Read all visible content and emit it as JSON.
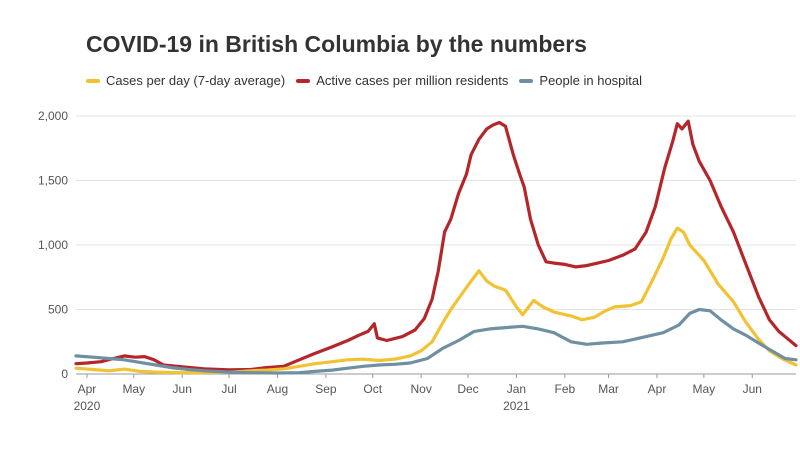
{
  "chart_data": {
    "type": "line",
    "title": "COVID-19 in British Columbia by the numbers",
    "xlabel": "",
    "ylabel": "",
    "legend_position": "top",
    "grid": true,
    "x_ticks": [
      {
        "label": "Apr",
        "year": "2020",
        "date": "2020-04-01"
      },
      {
        "label": "May",
        "date": "2020-05-01"
      },
      {
        "label": "Jun",
        "date": "2020-06-01"
      },
      {
        "label": "Jul",
        "date": "2020-07-01"
      },
      {
        "label": "Aug",
        "date": "2020-08-01"
      },
      {
        "label": "Sep",
        "date": "2020-09-01"
      },
      {
        "label": "Oct",
        "date": "2020-10-01"
      },
      {
        "label": "Nov",
        "date": "2020-11-01"
      },
      {
        "label": "Dec",
        "date": "2020-12-01"
      },
      {
        "label": "Jan",
        "year": "2021",
        "date": "2021-01-01"
      },
      {
        "label": "Feb",
        "date": "2021-02-01"
      },
      {
        "label": "Mar",
        "date": "2021-03-01"
      },
      {
        "label": "Apr",
        "date": "2021-04-01"
      },
      {
        "label": "May",
        "date": "2021-05-01"
      },
      {
        "label": "Jun",
        "date": "2021-06-01"
      }
    ],
    "y_ticks": [
      {
        "value": 0,
        "label": "0"
      },
      {
        "value": 500,
        "label": "500"
      },
      {
        "value": 1000,
        "label": "1,000"
      },
      {
        "value": 1500,
        "label": "1,500"
      },
      {
        "value": 2000,
        "label": "2,000"
      }
    ],
    "xlim": [
      "2020-03-25",
      "2021-06-29"
    ],
    "ylim": [
      0,
      2000
    ],
    "series": [
      {
        "name": "Active cases per million residents",
        "color": "#b5262b",
        "points": [
          [
            "2020-03-25",
            80
          ],
          [
            "2020-04-01",
            85
          ],
          [
            "2020-04-10",
            95
          ],
          [
            "2020-04-18",
            120
          ],
          [
            "2020-04-25",
            140
          ],
          [
            "2020-05-02",
            130
          ],
          [
            "2020-05-08",
            135
          ],
          [
            "2020-05-14",
            110
          ],
          [
            "2020-05-20",
            70
          ],
          [
            "2020-06-01",
            55
          ],
          [
            "2020-06-15",
            40
          ],
          [
            "2020-07-01",
            32
          ],
          [
            "2020-07-15",
            35
          ],
          [
            "2020-07-25",
            50
          ],
          [
            "2020-08-05",
            60
          ],
          [
            "2020-08-15",
            110
          ],
          [
            "2020-08-25",
            160
          ],
          [
            "2020-09-05",
            210
          ],
          [
            "2020-09-15",
            260
          ],
          [
            "2020-09-22",
            300
          ],
          [
            "2020-09-28",
            330
          ],
          [
            "2020-10-02",
            390
          ],
          [
            "2020-10-04",
            280
          ],
          [
            "2020-10-10",
            260
          ],
          [
            "2020-10-20",
            290
          ],
          [
            "2020-10-28",
            340
          ],
          [
            "2020-11-03",
            430
          ],
          [
            "2020-11-08",
            580
          ],
          [
            "2020-11-12",
            800
          ],
          [
            "2020-11-16",
            1100
          ],
          [
            "2020-11-20",
            1200
          ],
          [
            "2020-11-25",
            1400
          ],
          [
            "2020-11-30",
            1550
          ],
          [
            "2020-12-03",
            1700
          ],
          [
            "2020-12-08",
            1820
          ],
          [
            "2020-12-13",
            1900
          ],
          [
            "2020-12-17",
            1930
          ],
          [
            "2020-12-21",
            1950
          ],
          [
            "2020-12-25",
            1920
          ],
          [
            "2020-12-30",
            1700
          ],
          [
            "2021-01-03",
            1550
          ],
          [
            "2021-01-06",
            1450
          ],
          [
            "2021-01-10",
            1200
          ],
          [
            "2021-01-15",
            1000
          ],
          [
            "2021-01-20",
            870
          ],
          [
            "2021-01-25",
            860
          ],
          [
            "2021-02-01",
            850
          ],
          [
            "2021-02-08",
            830
          ],
          [
            "2021-02-15",
            840
          ],
          [
            "2021-02-22",
            860
          ],
          [
            "2021-03-01",
            880
          ],
          [
            "2021-03-10",
            920
          ],
          [
            "2021-03-18",
            970
          ],
          [
            "2021-03-25",
            1100
          ],
          [
            "2021-03-31",
            1300
          ],
          [
            "2021-04-06",
            1600
          ],
          [
            "2021-04-11",
            1800
          ],
          [
            "2021-04-14",
            1940
          ],
          [
            "2021-04-17",
            1900
          ],
          [
            "2021-04-21",
            1960
          ],
          [
            "2021-04-24",
            1780
          ],
          [
            "2021-04-28",
            1650
          ],
          [
            "2021-05-05",
            1500
          ],
          [
            "2021-05-12",
            1300
          ],
          [
            "2021-05-20",
            1100
          ],
          [
            "2021-05-28",
            850
          ],
          [
            "2021-06-05",
            600
          ],
          [
            "2021-06-12",
            420
          ],
          [
            "2021-06-18",
            330
          ],
          [
            "2021-06-24",
            270
          ],
          [
            "2021-06-29",
            220
          ]
        ]
      },
      {
        "name": "Cases per day (7-day average)",
        "color": "#f1c232",
        "points": [
          [
            "2020-03-25",
            45
          ],
          [
            "2020-04-05",
            35
          ],
          [
            "2020-04-15",
            25
          ],
          [
            "2020-04-25",
            38
          ],
          [
            "2020-05-05",
            20
          ],
          [
            "2020-05-15",
            15
          ],
          [
            "2020-06-01",
            10
          ],
          [
            "2020-06-15",
            12
          ],
          [
            "2020-07-01",
            14
          ],
          [
            "2020-07-15",
            25
          ],
          [
            "2020-07-25",
            30
          ],
          [
            "2020-08-05",
            40
          ],
          [
            "2020-08-15",
            60
          ],
          [
            "2020-08-25",
            80
          ],
          [
            "2020-09-05",
            95
          ],
          [
            "2020-09-15",
            110
          ],
          [
            "2020-09-25",
            115
          ],
          [
            "2020-10-05",
            105
          ],
          [
            "2020-10-15",
            115
          ],
          [
            "2020-10-25",
            140
          ],
          [
            "2020-11-01",
            180
          ],
          [
            "2020-11-08",
            250
          ],
          [
            "2020-11-15",
            400
          ],
          [
            "2020-11-20",
            500
          ],
          [
            "2020-11-27",
            620
          ],
          [
            "2020-12-03",
            720
          ],
          [
            "2020-12-08",
            800
          ],
          [
            "2020-12-13",
            720
          ],
          [
            "2020-12-18",
            680
          ],
          [
            "2020-12-25",
            650
          ],
          [
            "2021-01-01",
            520
          ],
          [
            "2021-01-05",
            460
          ],
          [
            "2021-01-12",
            570
          ],
          [
            "2021-01-18",
            520
          ],
          [
            "2021-01-25",
            480
          ],
          [
            "2021-02-05",
            450
          ],
          [
            "2021-02-12",
            420
          ],
          [
            "2021-02-20",
            440
          ],
          [
            "2021-02-27",
            490
          ],
          [
            "2021-03-05",
            520
          ],
          [
            "2021-03-15",
            530
          ],
          [
            "2021-03-22",
            560
          ],
          [
            "2021-03-30",
            750
          ],
          [
            "2021-04-05",
            900
          ],
          [
            "2021-04-10",
            1050
          ],
          [
            "2021-04-14",
            1130
          ],
          [
            "2021-04-18",
            1100
          ],
          [
            "2021-04-22",
            1000
          ],
          [
            "2021-05-01",
            880
          ],
          [
            "2021-05-10",
            700
          ],
          [
            "2021-05-20",
            560
          ],
          [
            "2021-05-28",
            400
          ],
          [
            "2021-06-05",
            270
          ],
          [
            "2021-06-12",
            180
          ],
          [
            "2021-06-20",
            120
          ],
          [
            "2021-06-29",
            70
          ]
        ]
      },
      {
        "name": "People in hospital",
        "color": "#6f8fa3",
        "points": [
          [
            "2020-03-25",
            140
          ],
          [
            "2020-04-05",
            130
          ],
          [
            "2020-04-15",
            120
          ],
          [
            "2020-04-25",
            110
          ],
          [
            "2020-05-05",
            90
          ],
          [
            "2020-05-15",
            70
          ],
          [
            "2020-05-25",
            50
          ],
          [
            "2020-06-05",
            35
          ],
          [
            "2020-06-15",
            25
          ],
          [
            "2020-07-01",
            15
          ],
          [
            "2020-07-15",
            10
          ],
          [
            "2020-08-01",
            8
          ],
          [
            "2020-08-15",
            10
          ],
          [
            "2020-08-25",
            20
          ],
          [
            "2020-09-05",
            30
          ],
          [
            "2020-09-15",
            45
          ],
          [
            "2020-09-25",
            60
          ],
          [
            "2020-10-05",
            70
          ],
          [
            "2020-10-15",
            75
          ],
          [
            "2020-10-25",
            85
          ],
          [
            "2020-11-05",
            120
          ],
          [
            "2020-11-15",
            200
          ],
          [
            "2020-11-25",
            260
          ],
          [
            "2020-12-05",
            330
          ],
          [
            "2020-12-15",
            350
          ],
          [
            "2020-12-25",
            360
          ],
          [
            "2021-01-05",
            370
          ],
          [
            "2021-01-15",
            350
          ],
          [
            "2021-01-25",
            320
          ],
          [
            "2021-02-05",
            250
          ],
          [
            "2021-02-15",
            230
          ],
          [
            "2021-02-25",
            240
          ],
          [
            "2021-03-10",
            250
          ],
          [
            "2021-03-25",
            290
          ],
          [
            "2021-04-05",
            320
          ],
          [
            "2021-04-15",
            380
          ],
          [
            "2021-04-22",
            470
          ],
          [
            "2021-04-28",
            500
          ],
          [
            "2021-05-05",
            490
          ],
          [
            "2021-05-12",
            420
          ],
          [
            "2021-05-20",
            350
          ],
          [
            "2021-05-28",
            300
          ],
          [
            "2021-06-05",
            240
          ],
          [
            "2021-06-15",
            170
          ],
          [
            "2021-06-22",
            120
          ],
          [
            "2021-06-29",
            110
          ]
        ]
      }
    ]
  }
}
